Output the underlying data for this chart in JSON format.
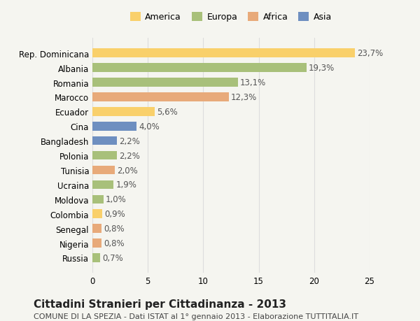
{
  "countries": [
    "Rep. Dominicana",
    "Albania",
    "Romania",
    "Marocco",
    "Ecuador",
    "Cina",
    "Bangladesh",
    "Polonia",
    "Tunisia",
    "Ucraina",
    "Moldova",
    "Colombia",
    "Senegal",
    "Nigeria",
    "Russia"
  ],
  "values": [
    23.7,
    19.3,
    13.1,
    12.3,
    5.6,
    4.0,
    2.2,
    2.2,
    2.0,
    1.9,
    1.0,
    0.9,
    0.8,
    0.8,
    0.7
  ],
  "labels": [
    "23,7%",
    "19,3%",
    "13,1%",
    "12,3%",
    "5,6%",
    "4,0%",
    "2,2%",
    "2,2%",
    "2,0%",
    "1,9%",
    "1,0%",
    "0,9%",
    "0,8%",
    "0,8%",
    "0,7%"
  ],
  "continents": [
    "America",
    "Europa",
    "Europa",
    "Africa",
    "America",
    "Asia",
    "Asia",
    "Europa",
    "Africa",
    "Europa",
    "Europa",
    "America",
    "Africa",
    "Africa",
    "Europa"
  ],
  "continent_colors": {
    "America": "#F9D06B",
    "Europa": "#A8C07A",
    "Africa": "#E8AA7A",
    "Asia": "#6E8FC0"
  },
  "legend_order": [
    "America",
    "Europa",
    "Africa",
    "Asia"
  ],
  "title": "Cittadini Stranieri per Cittadinanza - 2013",
  "subtitle": "COMUNE DI LA SPEZIA - Dati ISTAT al 1° gennaio 2013 - Elaborazione TUTTITALIA.IT",
  "xlim": [
    0,
    25
  ],
  "xticks": [
    0,
    5,
    10,
    15,
    20,
    25
  ],
  "background_color": "#F5F5F0",
  "bar_background": "#FFFFFF",
  "grid_color": "#DDDDDD",
  "title_fontsize": 11,
  "subtitle_fontsize": 8,
  "label_fontsize": 8.5,
  "tick_fontsize": 8.5,
  "legend_fontsize": 9
}
